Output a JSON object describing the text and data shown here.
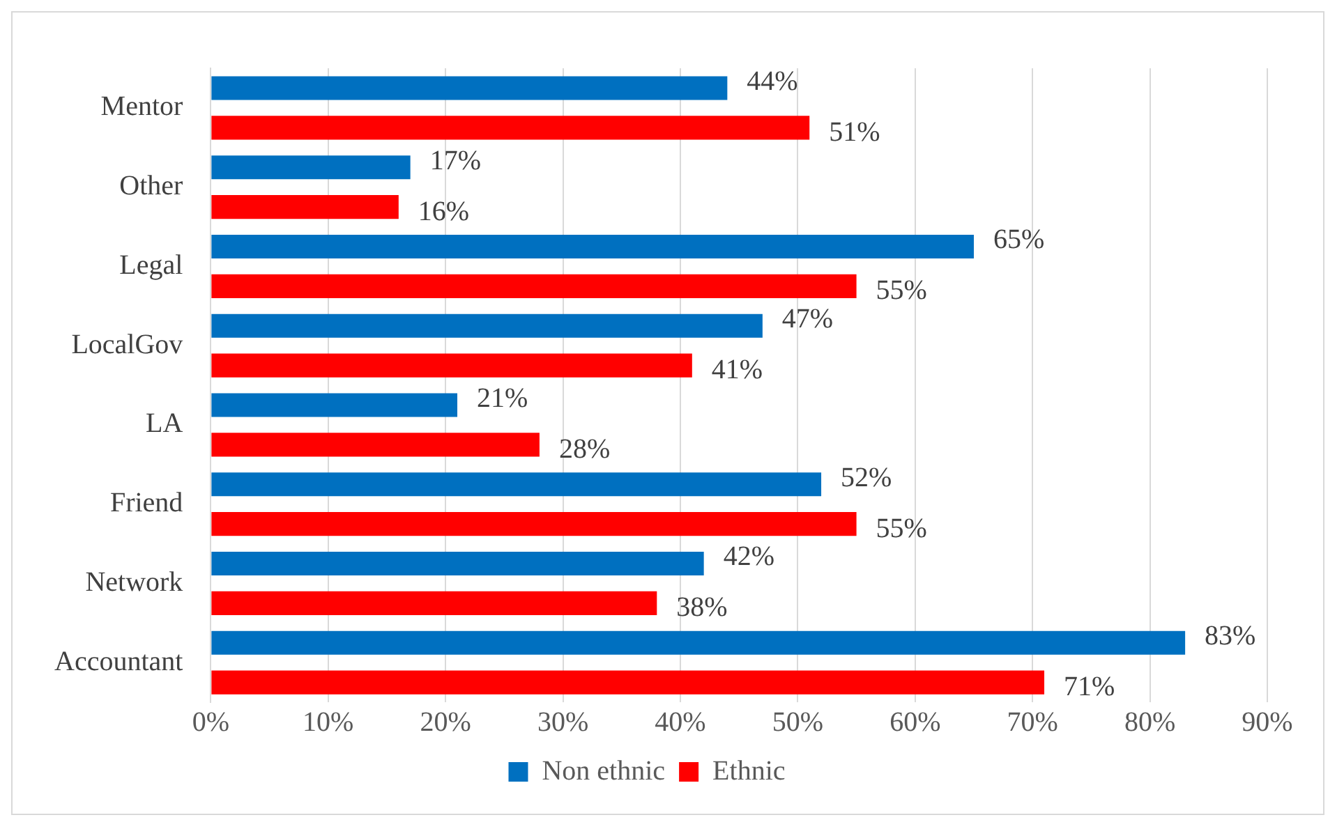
{
  "chart_data": {
    "type": "bar",
    "orientation": "horizontal",
    "categories": [
      "Mentor",
      "Other",
      "Legal",
      "LocalGov",
      "LA",
      "Friend",
      "Network",
      "Accountant"
    ],
    "series": [
      {
        "name": "Non ethnic",
        "color": "#0070c0",
        "values": [
          44,
          17,
          65,
          47,
          21,
          52,
          42,
          83
        ],
        "value_labels": [
          "44%",
          "17%",
          "65%",
          "47%",
          "21%",
          "52%",
          "42%",
          "83%"
        ]
      },
      {
        "name": "Ethnic",
        "color": "#ff0000",
        "values": [
          51,
          16,
          55,
          41,
          28,
          55,
          38,
          71
        ],
        "value_labels": [
          "51%",
          "16%",
          "55%",
          "41%",
          "28%",
          "55%",
          "38%",
          "71%"
        ]
      }
    ],
    "xlim": [
      0,
      90
    ],
    "xticks": [
      {
        "value": 0,
        "label": "0%"
      },
      {
        "value": 10,
        "label": "10%"
      },
      {
        "value": 20,
        "label": "20%"
      },
      {
        "value": 30,
        "label": "30%"
      },
      {
        "value": 40,
        "label": "40%"
      },
      {
        "value": 50,
        "label": "50%"
      },
      {
        "value": 60,
        "label": "60%"
      },
      {
        "value": 70,
        "label": "70%"
      },
      {
        "value": 80,
        "label": "80%"
      },
      {
        "value": 90,
        "label": "90%"
      }
    ],
    "grid": "x",
    "legend": "bottom"
  }
}
